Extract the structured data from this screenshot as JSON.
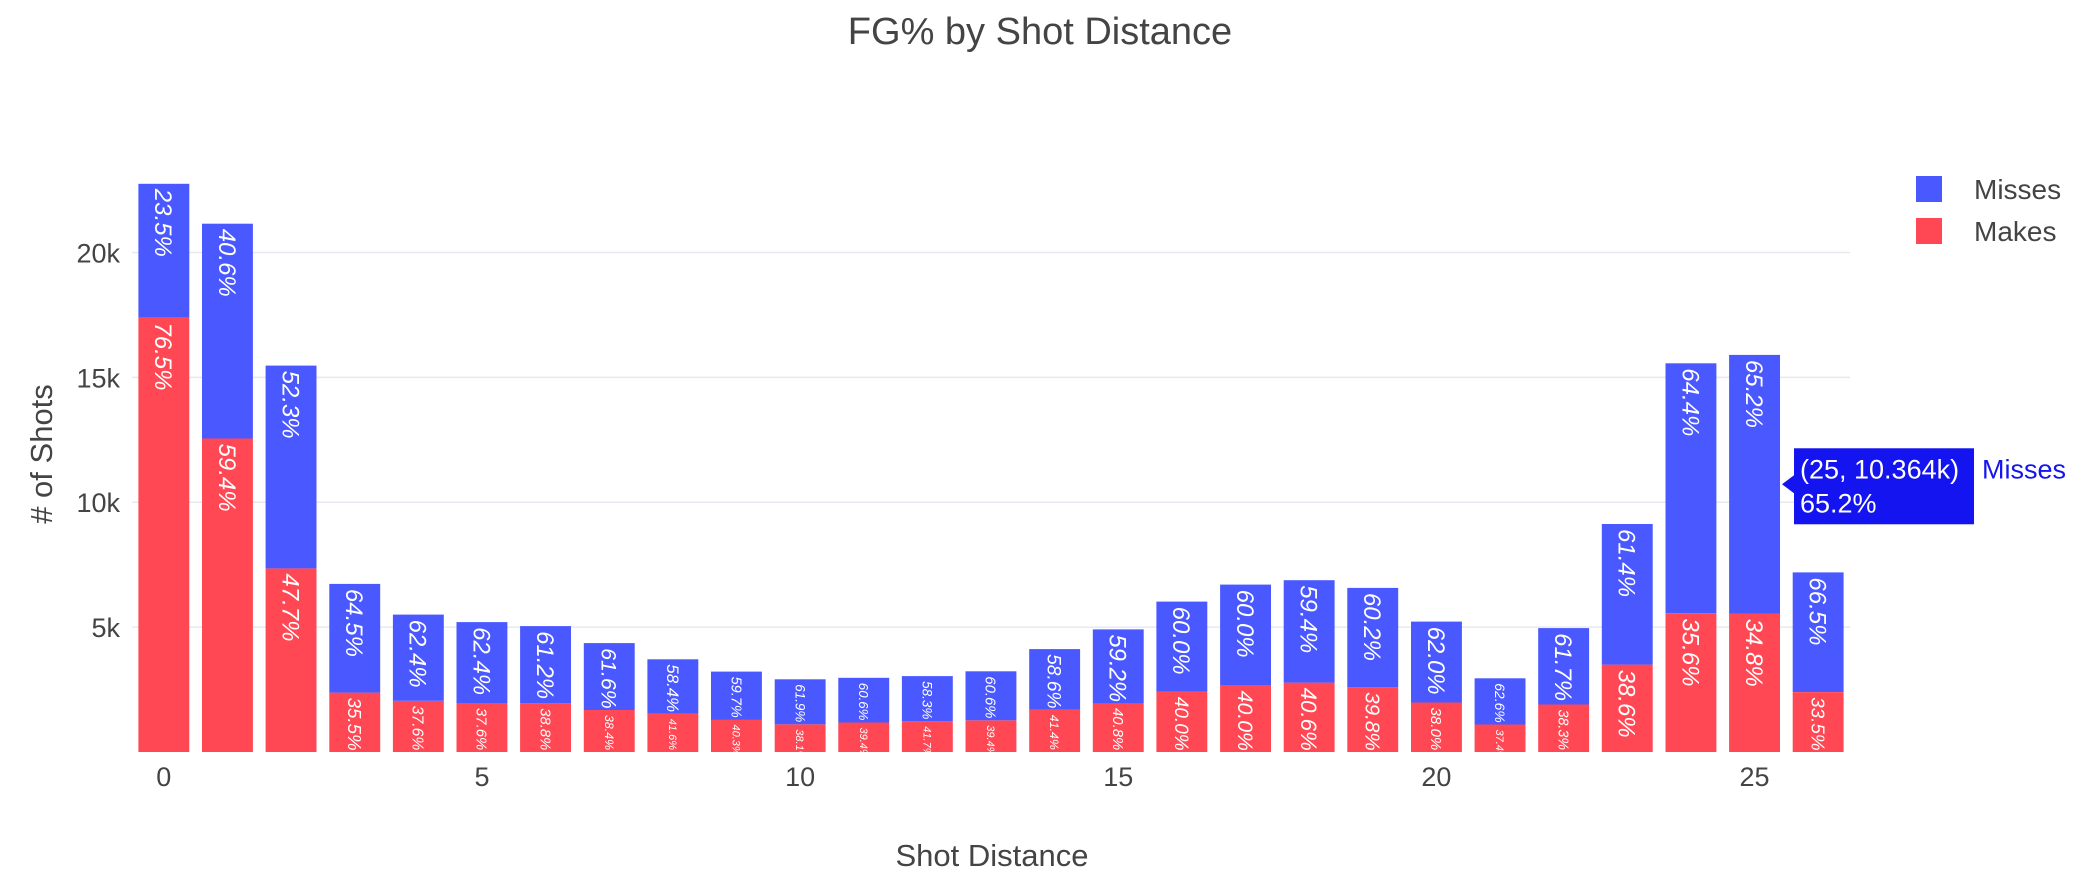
{
  "chart_data": {
    "type": "bar",
    "barmode": "stack",
    "title": "FG% by Shot Distance",
    "xlabel": "Shot Distance",
    "ylabel": "# of Shots",
    "x": [
      0,
      1,
      2,
      3,
      4,
      5,
      6,
      7,
      8,
      9,
      10,
      11,
      12,
      13,
      14,
      15,
      16,
      17,
      18,
      19,
      20,
      21,
      22,
      23,
      24,
      25,
      26
    ],
    "xlim": [
      -0.5,
      26.5
    ],
    "ylim": [
      0,
      22700
    ],
    "x_ticks": [
      0,
      5,
      10,
      15,
      20,
      25
    ],
    "x_tick_labels": [
      "0",
      "5",
      "10",
      "15",
      "20",
      "25"
    ],
    "y_ticks": [
      5000,
      10000,
      15000,
      20000
    ],
    "y_tick_labels": [
      "5k",
      "10k",
      "15k",
      "20k"
    ],
    "grid": true,
    "legend_position": "top-right",
    "series": [
      {
        "name": "Makes",
        "color": "#ff4854",
        "values": [
          17400,
          12550,
          7350,
          2380,
          2050,
          1960,
          1950,
          1680,
          1530,
          1300,
          1110,
          1180,
          1230,
          1270,
          1690,
          1960,
          2410,
          2660,
          2780,
          2600,
          1980,
          1100,
          1900,
          3500,
          5550,
          5536,
          2400
        ],
        "labels": [
          "76.5%",
          "59.4%",
          "47.7%",
          "35.5%",
          "37.6%",
          "37.6%",
          "38.8%",
          "38.4%",
          "41.6%",
          "40.3%",
          "38.1%",
          "39.4%",
          "41.7%",
          "39.4%",
          "41.4%",
          "40.8%",
          "40.0%",
          "40.0%",
          "40.6%",
          "39.8%",
          "38.0%",
          "37.4%",
          "38.3%",
          "38.6%",
          "35.6%",
          "34.8%",
          "33.5%"
        ]
      },
      {
        "name": "Misses",
        "color": "#4a58ff",
        "values": [
          5350,
          8600,
          8120,
          4350,
          3450,
          3240,
          3090,
          2680,
          2180,
          1920,
          1800,
          1790,
          1810,
          1960,
          2430,
          2950,
          3610,
          4040,
          4100,
          3970,
          3240,
          1850,
          3060,
          5630,
          10010,
          10364,
          4790
        ],
        "labels": [
          "23.5%",
          "40.6%",
          "52.3%",
          "64.5%",
          "62.4%",
          "62.4%",
          "61.2%",
          "61.6%",
          "58.4%",
          "59.7%",
          "61.9%",
          "60.6%",
          "58.3%",
          "60.6%",
          "58.6%",
          "59.2%",
          "60.0%",
          "60.0%",
          "59.4%",
          "60.2%",
          "62.0%",
          "62.6%",
          "61.7%",
          "61.4%",
          "64.4%",
          "65.2%",
          "66.5%"
        ]
      }
    ],
    "legend": [
      "Misses",
      "Makes"
    ],
    "hover": {
      "x": 25,
      "series": "Misses",
      "line1": "(25, 10.364k)",
      "line2": "65.2%",
      "series_label": "Misses"
    }
  }
}
